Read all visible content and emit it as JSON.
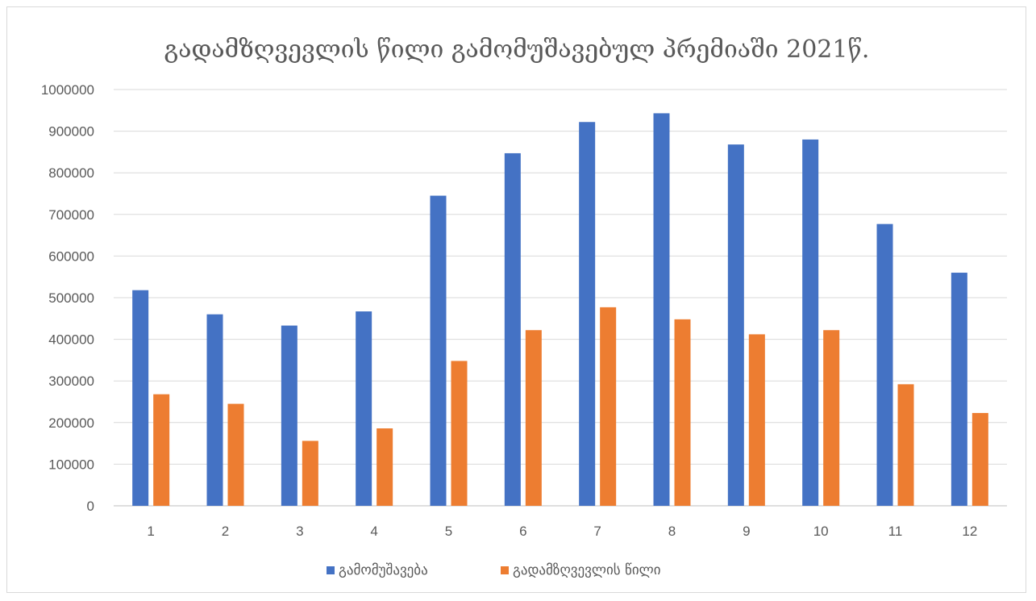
{
  "chart_data": {
    "type": "bar",
    "title": "გადამზღვევლის წილი გამომუშავებულ პრემიაში 2021წ.",
    "xlabel": "",
    "ylabel": "",
    "categories": [
      "1",
      "2",
      "3",
      "4",
      "5",
      "6",
      "7",
      "8",
      "9",
      "10",
      "11",
      "12"
    ],
    "ylim": [
      0,
      1000000
    ],
    "yticks": [
      0,
      100000,
      200000,
      300000,
      400000,
      500000,
      600000,
      700000,
      800000,
      900000,
      1000000
    ],
    "grid": true,
    "legend_position": "bottom",
    "series": [
      {
        "name": "გამომუშავება",
        "color": "#4472C4",
        "values": [
          518000,
          460000,
          433000,
          467000,
          745000,
          847000,
          922000,
          943000,
          868000,
          880000,
          677000,
          560000
        ]
      },
      {
        "name": "გადამზღვევლის წილი",
        "color": "#ED7D31",
        "values": [
          268000,
          245000,
          156000,
          186000,
          348000,
          422000,
          477000,
          448000,
          412000,
          422000,
          292000,
          223000
        ]
      }
    ]
  }
}
